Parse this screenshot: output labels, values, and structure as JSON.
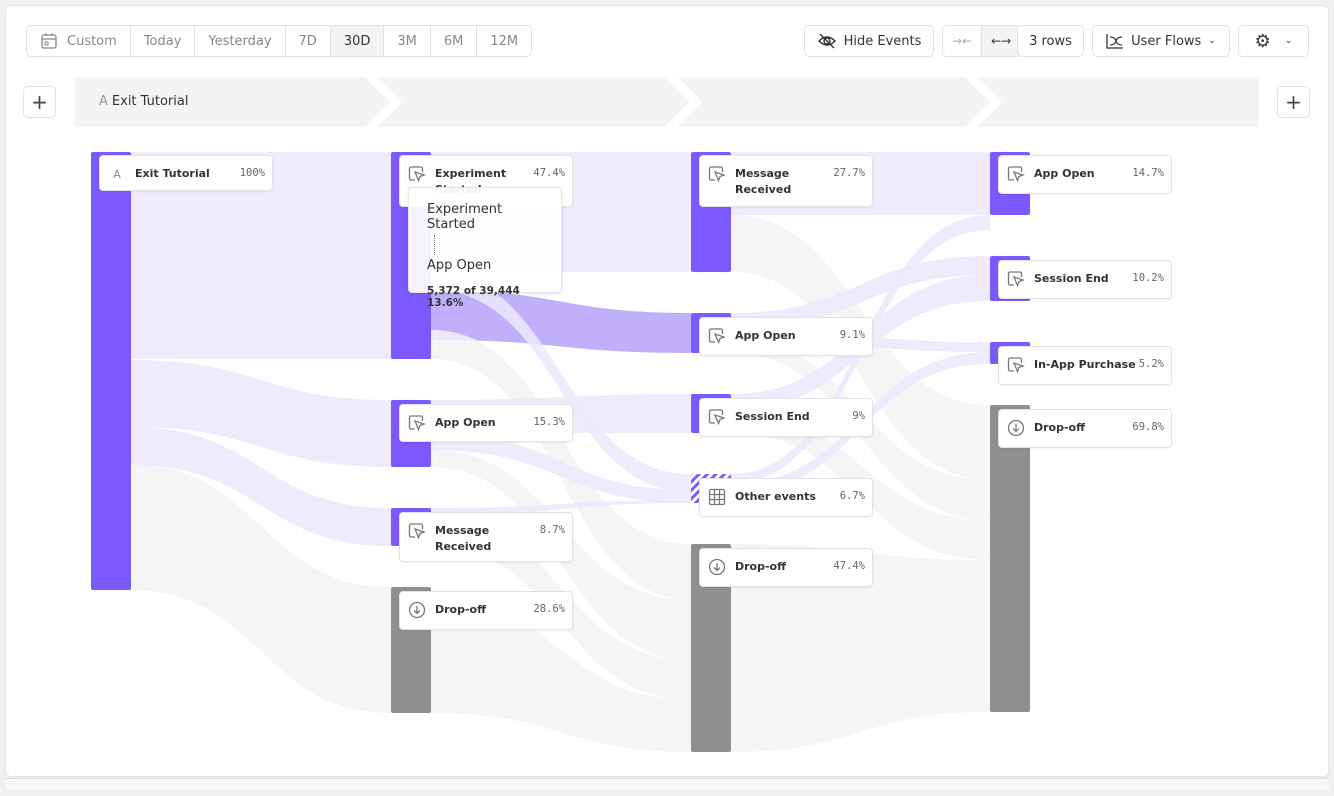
{
  "toolbar": {
    "date_ranges": [
      {
        "label": "Custom",
        "icon": "calendar-icon"
      },
      {
        "label": "Today"
      },
      {
        "label": "Yesterday"
      },
      {
        "label": "7D"
      },
      {
        "label": "30D",
        "active": true
      },
      {
        "label": "3M"
      },
      {
        "label": "6M"
      },
      {
        "label": "12M"
      }
    ],
    "hide_events": "Hide Events",
    "collapse_icon": "arrows-in-icon",
    "expand_icon": "arrows-out-icon",
    "rows": "3 rows",
    "view": "User Flows",
    "settings_icon": "gear-icon"
  },
  "steps": {
    "first": {
      "letter": "A",
      "label": "Exit Tutorial"
    }
  },
  "colors": {
    "event": "#7c58ff",
    "dropoff": "#8f8f8f",
    "link": "#ece8fd",
    "highlight": "#b9a6fb"
  },
  "columns": [
    [
      {
        "name": "Exit Tutorial",
        "pct": "100%",
        "icon": "letter-a-icon",
        "letter": "A"
      }
    ],
    [
      {
        "name": "Experiment Started",
        "pct": "47.4%",
        "icon": "cursor-click-icon"
      },
      {
        "name": "App Open",
        "pct": "15.3%",
        "icon": "cursor-click-icon"
      },
      {
        "name": "Message Received",
        "pct": "8.7%",
        "icon": "cursor-click-icon"
      },
      {
        "name": "Drop-off",
        "pct": "28.6%",
        "icon": "arrow-down-circle-icon"
      }
    ],
    [
      {
        "name": "Message Received",
        "pct": "27.7%",
        "icon": "cursor-click-icon"
      },
      {
        "name": "App Open",
        "pct": "9.1%",
        "icon": "cursor-click-icon"
      },
      {
        "name": "Session End",
        "pct": "9%",
        "icon": "cursor-click-icon"
      },
      {
        "name": "Other events",
        "pct": "6.7%",
        "icon": "grid-icon"
      },
      {
        "name": "Drop-off",
        "pct": "47.4%",
        "icon": "arrow-down-circle-icon"
      }
    ],
    [
      {
        "name": "App Open",
        "pct": "14.7%",
        "icon": "cursor-click-icon"
      },
      {
        "name": "Session End",
        "pct": "10.2%",
        "icon": "cursor-click-icon"
      },
      {
        "name": "In-App Purchase",
        "pct": "5.2%",
        "icon": "cursor-click-icon"
      },
      {
        "name": "Drop-off",
        "pct": "69.8%",
        "icon": "arrow-down-circle-icon"
      }
    ]
  ],
  "tooltip": {
    "from": "Experiment Started",
    "to": "App Open",
    "stats": "5,372 of 39,444 13.6%"
  }
}
